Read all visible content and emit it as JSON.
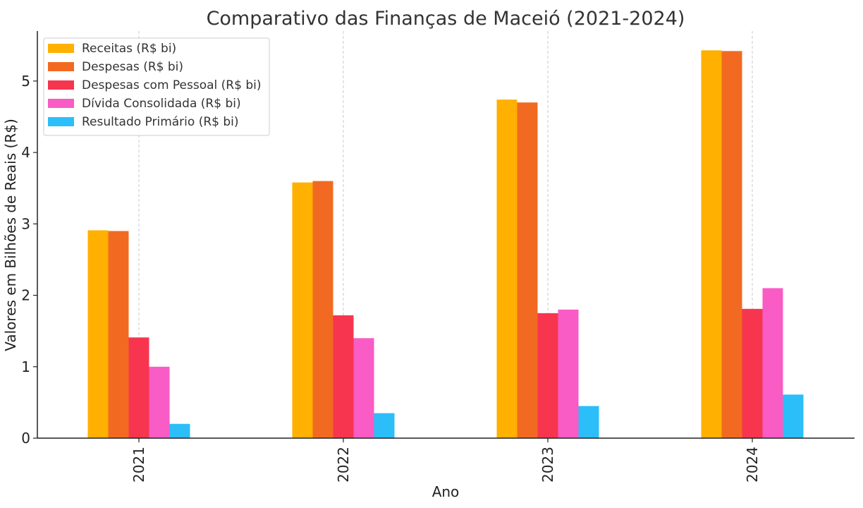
{
  "chart_data": {
    "type": "bar",
    "title": "Comparativo das Finanças de Maceió (2021-2024)",
    "xlabel": "Ano",
    "ylabel": "Valores em Bilhões de Reais (R$)",
    "categories": [
      "2021",
      "2022",
      "2023",
      "2024"
    ],
    "ylim": [
      0,
      5.7
    ],
    "yticks": [
      "0",
      "1",
      "2",
      "3",
      "4",
      "5"
    ],
    "grid": "vertical dashed",
    "legend_position": "top-left",
    "series": [
      {
        "name": "Receitas (R$ bi)",
        "color": "#FFB000",
        "values": [
          2.91,
          3.58,
          4.74,
          5.43
        ]
      },
      {
        "name": "Despesas (R$ bi)",
        "color": "#F26A21",
        "values": [
          2.9,
          3.6,
          4.7,
          5.42
        ]
      },
      {
        "name": "Despesas com Pessoal (R$ bi)",
        "color": "#F7354F",
        "values": [
          1.41,
          1.72,
          1.75,
          1.81
        ]
      },
      {
        "name": "Dívida Consolidada (R$ bi)",
        "color": "#F95CC4",
        "values": [
          1.0,
          1.4,
          1.8,
          2.1
        ]
      },
      {
        "name": "Resultado Primário (R$ bi)",
        "color": "#2BBEF9",
        "values": [
          0.2,
          0.35,
          0.45,
          0.61
        ]
      }
    ]
  }
}
